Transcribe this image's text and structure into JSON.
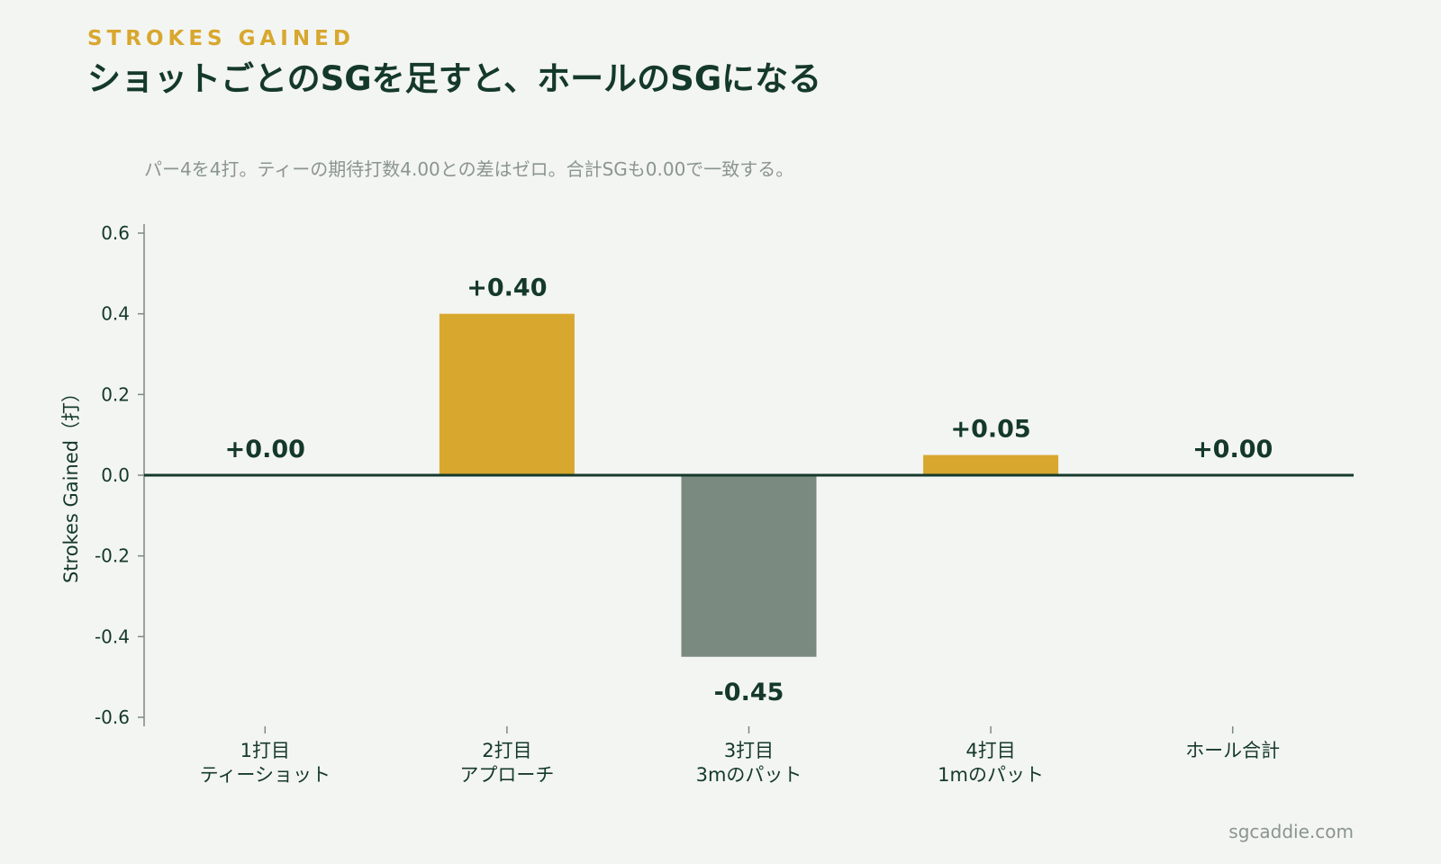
{
  "header": {
    "eyebrow": "STROKES GAINED",
    "title": "ショットごとのSGを足すと、ホールのSGになる",
    "subtitle": "パー4を4打。ティーの期待打数4.00との差はゼロ。合計SGも0.00で一致する。"
  },
  "footer": {
    "source": "sgcaddie.com"
  },
  "colors": {
    "background": "#f3f5f2",
    "positive": "#d8a72e",
    "negative": "#7b8a80",
    "text_dark": "#14392b",
    "text_muted": "#8a958e",
    "eyebrow": "#d8a72e",
    "axis": "#7b8a80",
    "zero_line": "#14392b"
  },
  "chart_data": {
    "type": "bar",
    "categories": [
      [
        "1打目",
        "ティーショット"
      ],
      [
        "2打目",
        "アプローチ"
      ],
      [
        "3打目",
        "3mのパット"
      ],
      [
        "4打目",
        "1mのパット"
      ],
      [
        "ホール合計"
      ]
    ],
    "values": [
      0.0,
      0.4,
      -0.45,
      0.05,
      0.0
    ],
    "value_labels": [
      "+0.00",
      "+0.40",
      "-0.45",
      "+0.05",
      "+0.00"
    ],
    "ylabel": "Strokes Gained（打）",
    "ylim": [
      -0.6,
      0.6
    ],
    "yticks": [
      -0.6,
      -0.4,
      -0.2,
      0.0,
      0.2,
      0.4,
      0.6
    ],
    "ytick_labels": [
      "-0.6",
      "-0.4",
      "-0.2",
      "0.0",
      "0.2",
      "0.4",
      "0.6"
    ],
    "grid": false,
    "legend": "none"
  }
}
